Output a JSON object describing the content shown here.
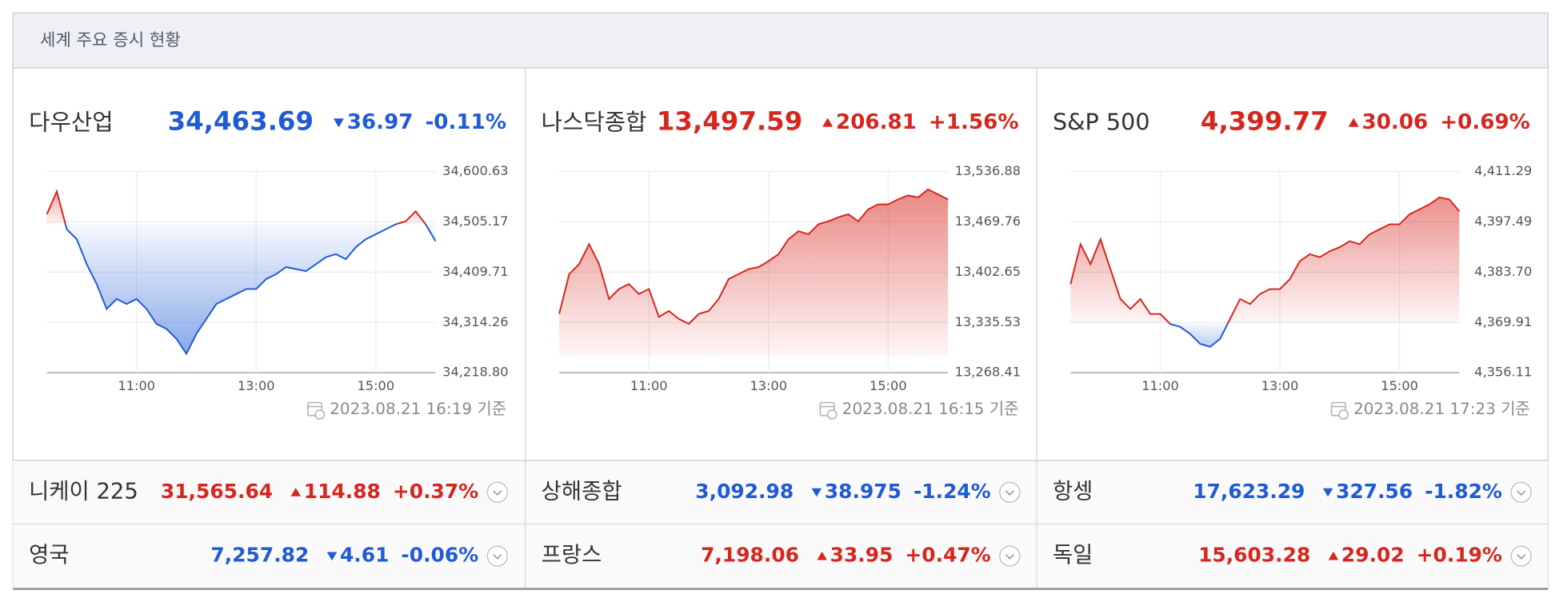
{
  "header": {
    "title": "세계 주요 증시 현황"
  },
  "colors": {
    "up": "#d7261e",
    "down": "#1f5bd6"
  },
  "panels": [
    {
      "name": "다우산업",
      "value": "34,463.69",
      "change": "36.97",
      "direction": "down",
      "percent": "-0.11%",
      "timestamp": "2023.08.21 16:19 기준"
    },
    {
      "name": "나스닥종합",
      "value": "13,497.59",
      "change": "206.81",
      "direction": "up",
      "percent": "+1.56%",
      "timestamp": "2023.08.21 16:15 기준"
    },
    {
      "name": "S&P 500",
      "value": "4,399.77",
      "change": "30.06",
      "direction": "up",
      "percent": "+0.69%",
      "timestamp": "2023.08.21 17:23 기준"
    }
  ],
  "chart_data": [
    {
      "type": "line",
      "x": [
        "09:30",
        "09:40",
        "09:50",
        "10:00",
        "10:10",
        "10:20",
        "10:30",
        "10:40",
        "10:50",
        "11:00",
        "11:10",
        "11:20",
        "11:30",
        "11:40",
        "11:50",
        "12:00",
        "12:10",
        "12:20",
        "12:30",
        "12:40",
        "12:50",
        "13:00",
        "13:10",
        "13:20",
        "13:30",
        "13:40",
        "13:50",
        "14:00",
        "14:10",
        "14:20",
        "14:30",
        "14:40",
        "14:50",
        "15:00",
        "15:10",
        "15:20",
        "15:30",
        "15:40",
        "15:50",
        "16:00"
      ],
      "values": [
        34519.3,
        34562.8,
        34491.0,
        34472.1,
        34424.8,
        34387.0,
        34339.8,
        34358.7,
        34349.2,
        34358.7,
        34339.8,
        34311.4,
        34302.0,
        34283.1,
        34254.7,
        34292.5,
        34320.9,
        34349.2,
        34358.7,
        34368.1,
        34377.6,
        34377.6,
        34396.5,
        34405.9,
        34419.2,
        34415.4,
        34411.6,
        34424.8,
        34438.1,
        34443.7,
        34434.3,
        34457.0,
        34472.1,
        34481.5,
        34491.0,
        34500.4,
        34506.1,
        34525.0,
        34500.4,
        34468.3
      ],
      "ylim": [
        34218.8,
        34600.63
      ],
      "yticks": [
        {
          "value": 34218.8,
          "label": "34,218.80"
        },
        {
          "value": 34314.26,
          "label": "34,314.26"
        },
        {
          "value": 34409.71,
          "label": "34,409.71"
        },
        {
          "value": 34505.17,
          "label": "34,505.17"
        },
        {
          "value": 34600.63,
          "label": "34,600.63"
        }
      ],
      "xticks": [
        "11:00",
        "13:00",
        "15:00"
      ],
      "grid": true
    },
    {
      "type": "line",
      "x": [
        "09:30",
        "09:40",
        "09:50",
        "10:00",
        "10:10",
        "10:20",
        "10:30",
        "10:40",
        "10:50",
        "11:00",
        "11:10",
        "11:20",
        "11:30",
        "11:40",
        "11:50",
        "12:00",
        "12:10",
        "12:20",
        "12:30",
        "12:40",
        "12:50",
        "13:00",
        "13:10",
        "13:20",
        "13:30",
        "13:40",
        "13:50",
        "14:00",
        "14:10",
        "14:20",
        "14:30",
        "14:40",
        "14:50",
        "15:00",
        "15:10",
        "15:20",
        "15:30",
        "15:40",
        "15:50",
        "16:00"
      ],
      "values": [
        13346.9,
        13400.0,
        13413.3,
        13439.9,
        13413.3,
        13366.8,
        13380.1,
        13386.7,
        13373.4,
        13380.1,
        13342.9,
        13350.8,
        13340.2,
        13333.6,
        13346.9,
        13350.8,
        13366.8,
        13393.4,
        13400.0,
        13406.7,
        13409.3,
        13417.3,
        13426.6,
        13446.5,
        13457.2,
        13453.2,
        13466.5,
        13470.4,
        13475.8,
        13479.8,
        13470.4,
        13486.4,
        13493.0,
        13493.0,
        13499.7,
        13505.0,
        13502.3,
        13513.0,
        13506.3,
        13499.7
      ],
      "ylim": [
        13268.41,
        13536.88
      ],
      "yticks": [
        {
          "value": 13268.41,
          "label": "13,268.41"
        },
        {
          "value": 13335.53,
          "label": "13,335.53"
        },
        {
          "value": 13402.65,
          "label": "13,402.65"
        },
        {
          "value": 13469.76,
          "label": "13,469.76"
        },
        {
          "value": 13536.88,
          "label": "13,536.88"
        }
      ],
      "xticks": [
        "11:00",
        "13:00",
        "15:00"
      ],
      "grid": true
    },
    {
      "type": "line",
      "x": [
        "09:30",
        "09:40",
        "09:50",
        "10:00",
        "10:10",
        "10:20",
        "10:30",
        "10:40",
        "10:50",
        "11:00",
        "11:10",
        "11:20",
        "11:30",
        "11:40",
        "11:50",
        "12:00",
        "12:10",
        "12:20",
        "12:30",
        "12:40",
        "12:50",
        "13:00",
        "13:10",
        "13:20",
        "13:30",
        "13:40",
        "13:50",
        "14:00",
        "14:10",
        "14:20",
        "14:30",
        "14:40",
        "14:50",
        "15:00",
        "15:10",
        "15:20",
        "15:30",
        "15:40",
        "15:50",
        "16:00"
      ],
      "values": [
        4380.42,
        4391.35,
        4385.88,
        4392.71,
        4384.52,
        4376.32,
        4373.59,
        4376.32,
        4372.22,
        4372.22,
        4369.49,
        4368.67,
        4366.76,
        4364.03,
        4363.21,
        4365.39,
        4370.86,
        4376.32,
        4374.95,
        4377.69,
        4379.05,
        4379.05,
        4381.78,
        4386.7,
        4388.61,
        4387.79,
        4389.43,
        4390.53,
        4392.17,
        4391.35,
        4394.08,
        4395.44,
        4396.81,
        4396.81,
        4399.54,
        4400.91,
        4402.27,
        4404.19,
        4403.64,
        4400.36
      ],
      "ylim": [
        4356.11,
        4411.29
      ],
      "yticks": [
        {
          "value": 4356.11,
          "label": "4,356.11"
        },
        {
          "value": 4369.91,
          "label": "4,369.91"
        },
        {
          "value": 4383.7,
          "label": "4,383.70"
        },
        {
          "value": 4397.49,
          "label": "4,397.49"
        },
        {
          "value": 4411.29,
          "label": "4,411.29"
        }
      ],
      "xticks": [
        "11:00",
        "13:00",
        "15:00"
      ],
      "grid": true
    }
  ],
  "markets": [
    {
      "name": "니케이 225",
      "value": "31,565.64",
      "change": "114.88",
      "direction": "up",
      "percent": "+0.37%"
    },
    {
      "name": "상해종합",
      "value": "3,092.98",
      "change": "38.975",
      "direction": "down",
      "percent": "-1.24%"
    },
    {
      "name": "항셍",
      "value": "17,623.29",
      "change": "327.56",
      "direction": "down",
      "percent": "-1.82%"
    },
    {
      "name": "영국",
      "value": "7,257.82",
      "change": "4.61",
      "direction": "down",
      "percent": "-0.06%"
    },
    {
      "name": "프랑스",
      "value": "7,198.06",
      "change": "33.95",
      "direction": "up",
      "percent": "+0.47%"
    },
    {
      "name": "독일",
      "value": "15,603.28",
      "change": "29.02",
      "direction": "up",
      "percent": "+0.19%"
    }
  ]
}
